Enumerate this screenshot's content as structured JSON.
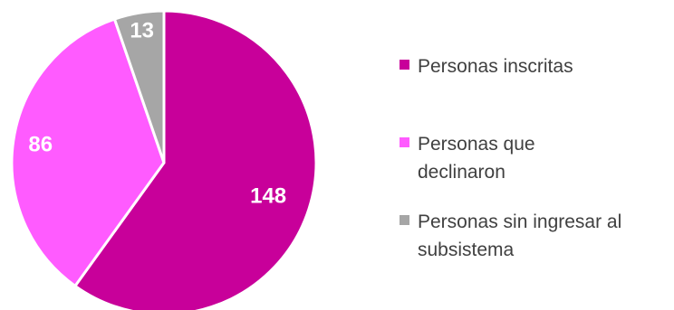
{
  "chart_data": {
    "type": "pie",
    "slices": [
      {
        "label": "Personas inscritas",
        "value": 148,
        "color": "#C8009A"
      },
      {
        "label": "Personas que declinaron",
        "value": 86,
        "color": "#FF5BFF"
      },
      {
        "label": "Personas sin ingresar al subsistema",
        "value": 13,
        "color": "#A6A6A6"
      }
    ],
    "start_angle": "12 o'clock",
    "direction": "clockwise",
    "data_labels": [
      "148",
      "86",
      "13"
    ],
    "legend_position": "right"
  }
}
